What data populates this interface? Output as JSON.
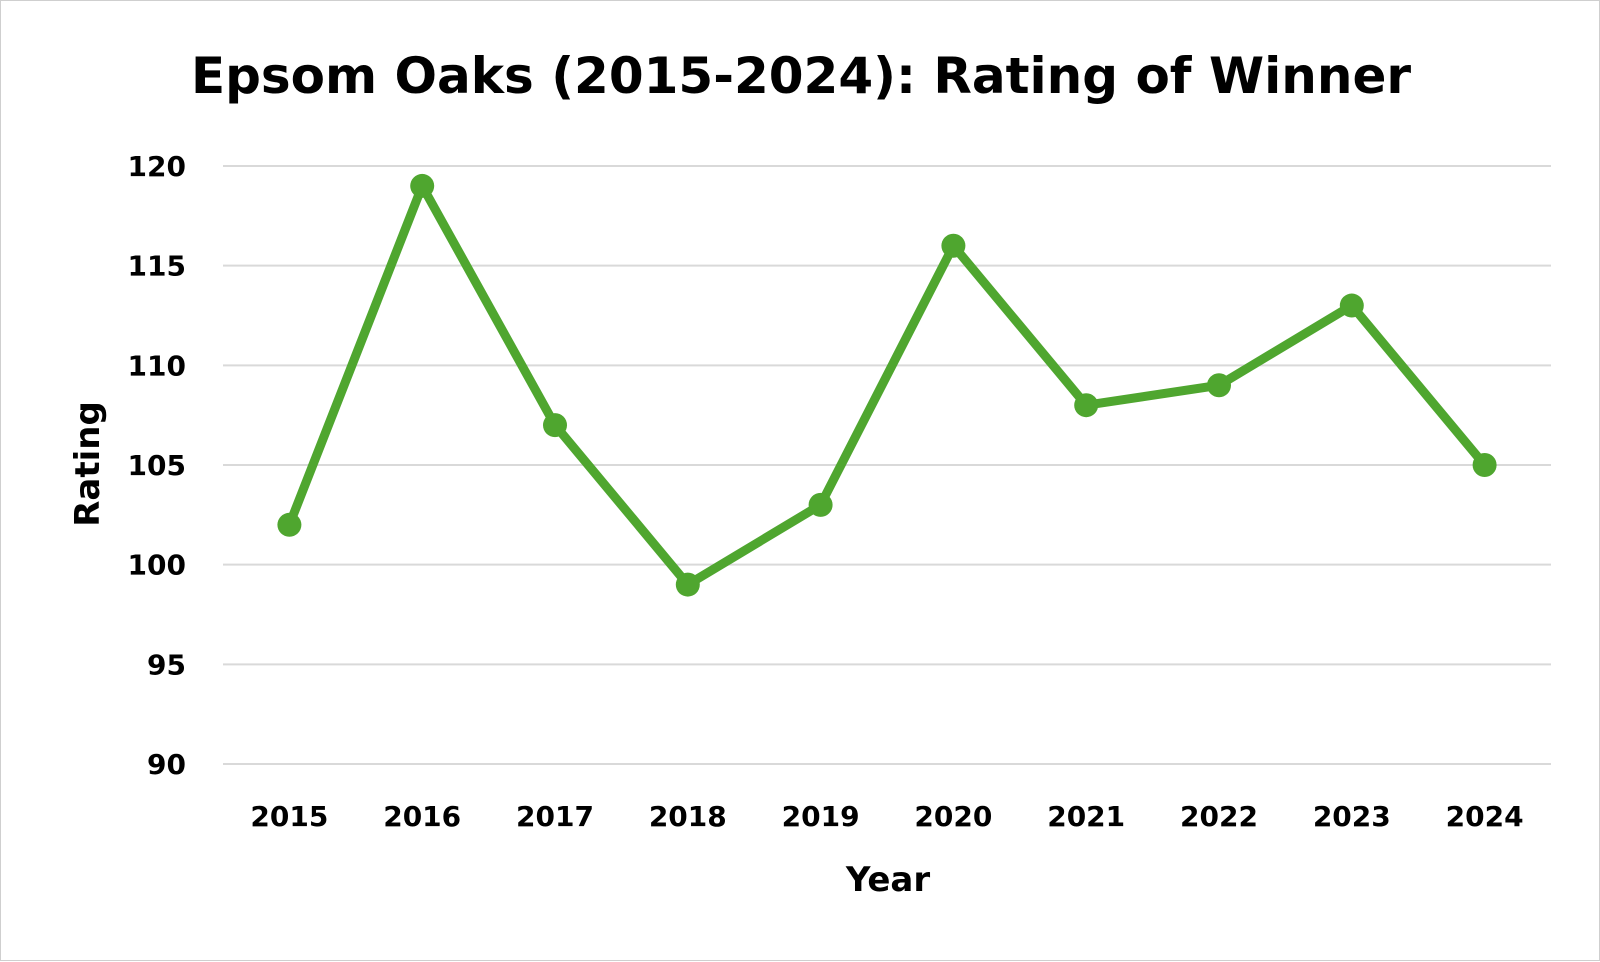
{
  "chart_data": {
    "type": "line",
    "title": "Epsom Oaks (2015-2024): Rating of Winner",
    "xlabel": "Year",
    "ylabel": "Rating",
    "categories": [
      "2015",
      "2016",
      "2017",
      "2018",
      "2019",
      "2020",
      "2021",
      "2022",
      "2023",
      "2024"
    ],
    "series": [
      {
        "values": [
          102,
          119,
          107,
          99,
          103,
          116,
          108,
          109,
          113,
          105
        ],
        "color": "#4fa62f"
      }
    ],
    "ylim": [
      90,
      120
    ],
    "yticks": [
      90,
      95,
      100,
      105,
      110,
      115,
      120
    ],
    "grid": true,
    "gridColor": "#d9d9d9",
    "legend": "none"
  }
}
